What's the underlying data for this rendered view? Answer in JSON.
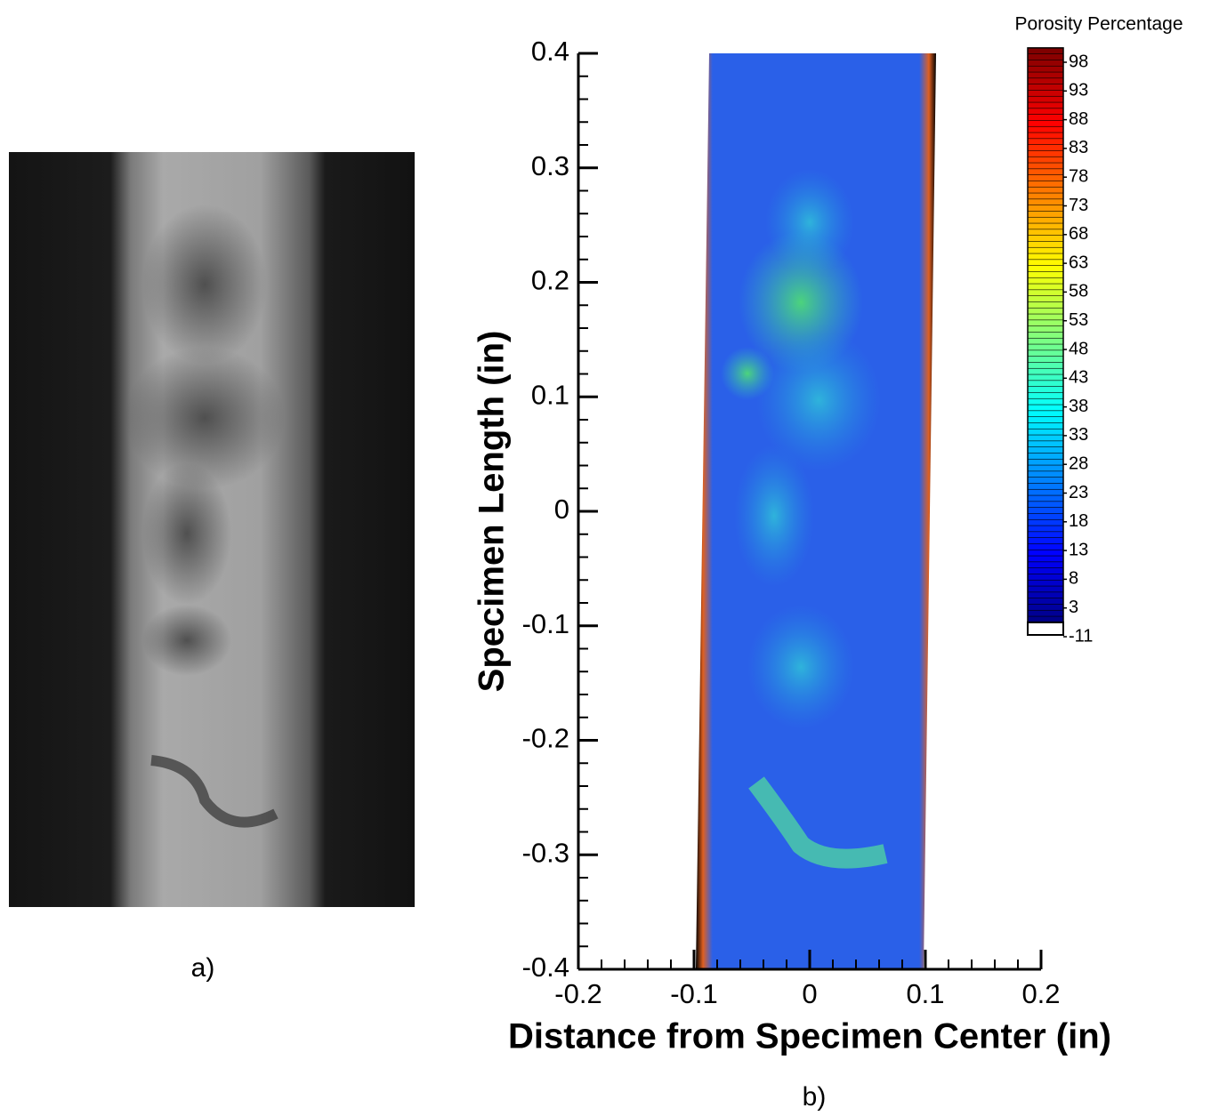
{
  "panels": [
    "a)",
    "b)"
  ],
  "chart_data": {
    "type": "contour",
    "xlabel": "Distance from Specimen Center (in)",
    "ylabel": "Specimen Length (in)",
    "xlim": [
      -0.2,
      0.2
    ],
    "xticks": [
      -0.2,
      -0.1,
      0,
      0.1,
      0.2
    ],
    "ylim": [
      -0.4,
      0.4
    ],
    "yticks": [
      0.4,
      0.3,
      0.2,
      0.1,
      0,
      -0.1,
      -0.2,
      -0.3,
      -0.4
    ],
    "colorbar": {
      "title": "Porosity Percentage",
      "ticks": [
        98,
        93,
        88,
        83,
        78,
        73,
        68,
        63,
        58,
        53,
        48,
        43,
        38,
        33,
        28,
        23,
        18,
        13,
        8,
        3,
        -11
      ]
    }
  }
}
